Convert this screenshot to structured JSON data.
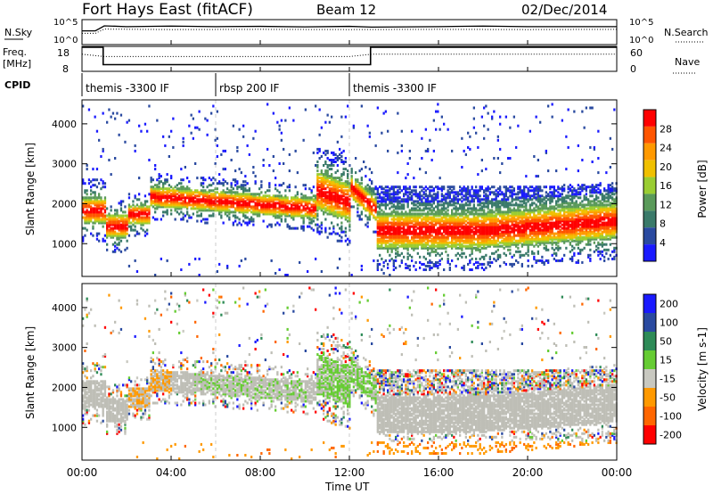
{
  "header": {
    "station": "Fort Hays East (fitACF)",
    "beam": "Beam 12",
    "date": "02/Dec/2014"
  },
  "top_panels": {
    "nsky_label": "N.Sky",
    "nsearch_label": "N.Search",
    "freq_label_line1": "Freq.",
    "freq_label_line2": "[MHz]",
    "nave_label": "Nave",
    "cpid_label": "CPID",
    "noise_left_ticks": [
      "10^5",
      "10^0"
    ],
    "noise_right_ticks": [
      "10^5",
      "10^0"
    ],
    "freq_ticks": [
      "18",
      "8"
    ],
    "nave_ticks": [
      "60",
      "0"
    ]
  },
  "colors": {
    "power_scale": [
      "#1a1aff",
      "#2a4aa0",
      "#3a7a6a",
      "#5a9a5a",
      "#9acd32",
      "#f0c000",
      "#ff9900",
      "#ff5500",
      "#ff0000"
    ],
    "velocity_scale": [
      "#1a1aff",
      "#2a4aa0",
      "#2e8b57",
      "#66cc33",
      "#c8c8c0",
      "#ff9900",
      "#ff6600",
      "#ff0000"
    ],
    "ground_scatter": "#bebeb6"
  },
  "chart_data": [
    {
      "type": "line",
      "panel": "noise",
      "series": [
        {
          "name": "N.Sky",
          "style": "solid",
          "x": [
            0,
            0.6,
            1.0,
            2,
            4,
            6,
            8,
            10,
            12,
            13,
            16,
            18,
            20,
            24
          ],
          "y": [
            0.55,
            0.55,
            0.75,
            0.72,
            0.74,
            0.72,
            0.73,
            0.71,
            0.73,
            0.7,
            0.72,
            0.74,
            0.72,
            0.72
          ]
        },
        {
          "name": "N.Search",
          "style": "dotted",
          "x": [
            0,
            0.6,
            1.0,
            4,
            8,
            12,
            16,
            20,
            24
          ],
          "y": [
            0.45,
            0.45,
            0.62,
            0.6,
            0.61,
            0.6,
            0.61,
            0.6,
            0.61
          ]
        }
      ]
    },
    {
      "type": "line",
      "panel": "frequency",
      "series": [
        {
          "name": "Freq.",
          "style": "solid",
          "x": [
            0,
            0.95,
            0.95,
            12.95,
            12.95,
            24
          ],
          "y": [
            18,
            18,
            10.5,
            10.5,
            18,
            18
          ]
        },
        {
          "name": "Nave",
          "style": "dotted",
          "x": [
            0,
            1,
            4,
            8,
            12,
            13,
            16,
            20,
            24
          ],
          "y": [
            15,
            14,
            14,
            14,
            14,
            15,
            15,
            15,
            15
          ]
        }
      ],
      "ylim": [
        8,
        18
      ]
    },
    {
      "type": "table",
      "panel": "cpid",
      "segments": [
        {
          "start": 0,
          "end": 6.0,
          "label": "themis -3300 IF"
        },
        {
          "start": 6.0,
          "end": 12.0,
          "label": "rbsp 200 IF"
        },
        {
          "start": 12.0,
          "end": 24,
          "label": "themis -3300 IF"
        }
      ]
    },
    {
      "type": "heatmap",
      "panel": "power",
      "ylabel": "Slant Range [km]",
      "ylim": [
        180,
        4600
      ],
      "xlim": [
        0,
        24
      ],
      "y_ticks": [
        1000,
        2000,
        3000,
        4000
      ],
      "colorbar_label": "Power [dB]",
      "colorbar_ticks": [
        4,
        8,
        12,
        16,
        20,
        24,
        28
      ]
    },
    {
      "type": "heatmap",
      "panel": "velocity",
      "ylabel": "Slant Range [km]",
      "xlabel": "Time UT",
      "ylim": [
        180,
        4600
      ],
      "xlim": [
        0,
        24
      ],
      "y_ticks": [
        1000,
        2000,
        3000,
        4000
      ],
      "x_ticks": [
        "00:00",
        "04:00",
        "08:00",
        "12:00",
        "16:00",
        "20:00",
        "00:00"
      ],
      "colorbar_label": "Velocity [m s-1]",
      "colorbar_ticks": [
        200,
        100,
        50,
        15,
        -15,
        -50,
        -100,
        -200
      ]
    }
  ]
}
